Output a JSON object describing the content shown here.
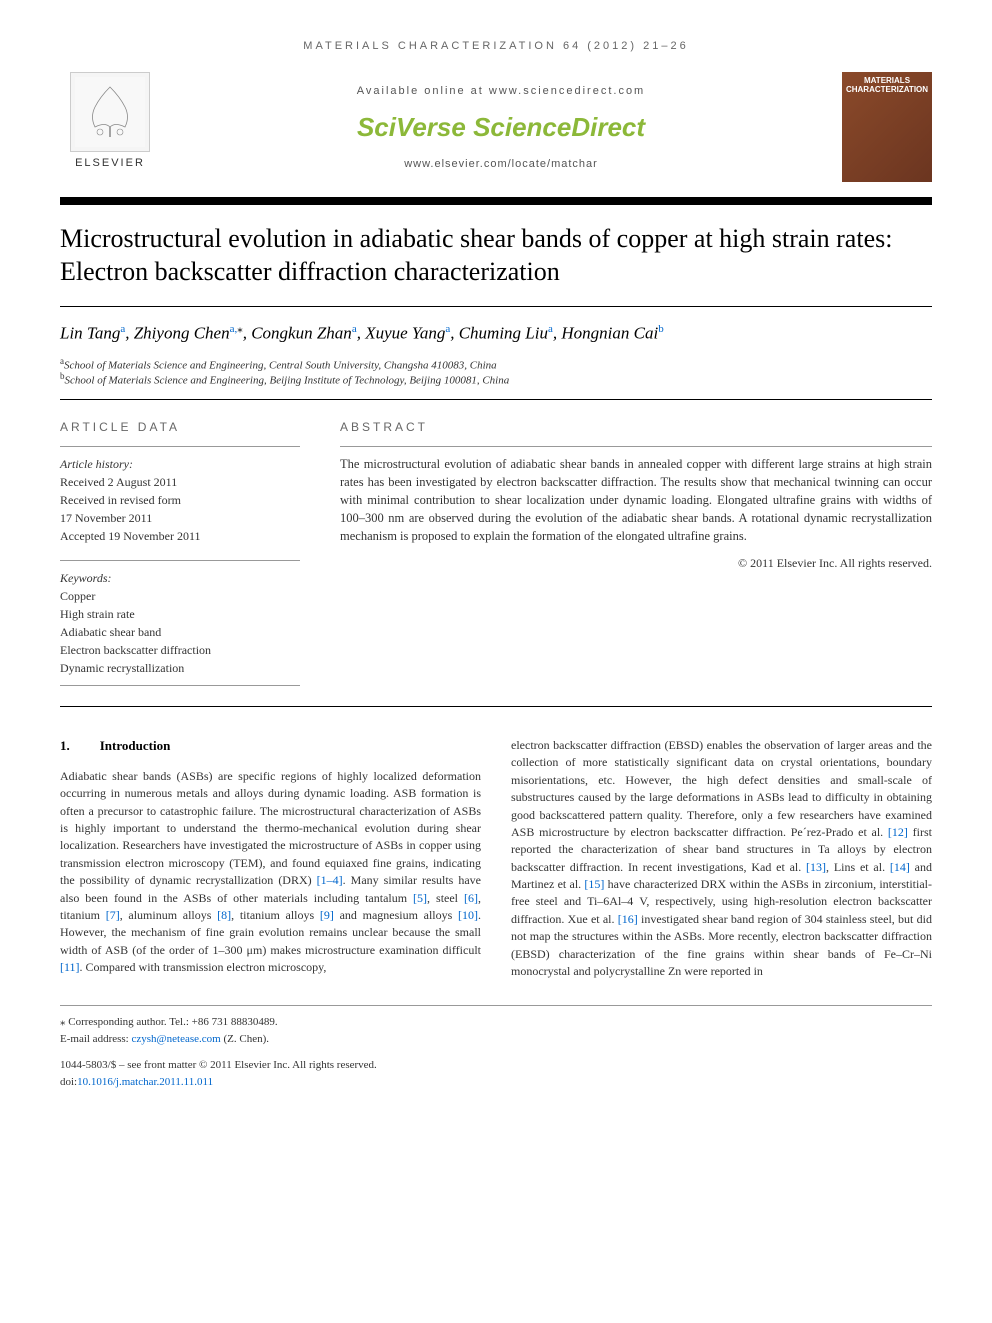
{
  "journalHeader": "MATERIALS CHARACTERIZATION 64 (2012) 21–26",
  "availableText": "Available online at www.sciencedirect.com",
  "sciverseBrand": "SciVerse ",
  "sciDirectBrand": "ScienceDirect",
  "locateText": "www.elsevier.com/locate/matchar",
  "elsevierLabel": "ELSEVIER",
  "coverTitle": "MATERIALS CHARACTERIZATION",
  "articleTitle": "Microstructural evolution in adiabatic shear bands of copper at high strain rates: Electron backscatter diffraction characterization",
  "authorsHtmlParts": [
    {
      "name": "Lin Tang",
      "sup": "a"
    },
    {
      "name": "Zhiyong Chen",
      "sup": "a,",
      "star": true
    },
    {
      "name": "Congkun Zhan",
      "sup": "a"
    },
    {
      "name": "Xuyue Yang",
      "sup": "a"
    },
    {
      "name": "Chuming Liu",
      "sup": "a"
    },
    {
      "name": "Hongnian Cai",
      "sup": "b"
    }
  ],
  "affiliations": [
    {
      "sup": "a",
      "text": "School of Materials Science and Engineering, Central South University, Changsha 410083, China"
    },
    {
      "sup": "b",
      "text": "School of Materials Science and Engineering, Beijing Institute of Technology, Beijing 100081, China"
    }
  ],
  "articleDataLabel": "ARTICLE DATA",
  "historyLabel": "Article history:",
  "history": [
    "Received 2 August 2011",
    "Received in revised form",
    "17 November 2011",
    "Accepted 19 November 2011"
  ],
  "keywordsLabel": "Keywords:",
  "keywords": [
    "Copper",
    "High strain rate",
    "Adiabatic shear band",
    "Electron backscatter diffraction",
    "Dynamic recrystallization"
  ],
  "abstractLabel": "ABSTRACT",
  "abstractText": "The microstructural evolution of adiabatic shear bands in annealed copper with different large strains at high strain rates has been investigated by electron backscatter diffraction. The results show that mechanical twinning can occur with minimal contribution to shear localization under dynamic loading. Elongated ultrafine grains with widths of 100–300 nm are observed during the evolution of the adiabatic shear bands. A rotational dynamic recrystallization mechanism is proposed to explain the formation of the elongated ultrafine grains.",
  "copyrightAbstract": "© 2011 Elsevier Inc. All rights reserved.",
  "section1Num": "1.",
  "section1Title": "Introduction",
  "col1Text": "Adiabatic shear bands (ASBs) are specific regions of highly localized deformation occurring in numerous metals and alloys during dynamic loading. ASB formation is often a precursor to catastrophic failure. The microstructural characterization of ASBs is highly important to understand the thermo-mechanical evolution during shear localization. Researchers have investigated the microstructure of ASBs in copper using transmission electron microscopy (TEM), and found equiaxed fine grains, indicating the possibility of dynamic recrystallization (DRX) ",
  "ref1_4": "[1–4]",
  "col1Text2": ". Many similar results have also been found in the ASBs of other materials including tantalum ",
  "ref5": "[5]",
  "col1Text3": ", steel ",
  "ref6": "[6]",
  "col1Text4": ", titanium ",
  "ref7": "[7]",
  "col1Text5": ", aluminum alloys ",
  "ref8": "[8]",
  "col1Text6": ", titanium alloys ",
  "ref9": "[9]",
  "col1Text7": " and magnesium alloys ",
  "ref10": "[10]",
  "col1Text8": ". However, the mechanism of fine grain evolution remains unclear because the small width of ASB (of the order of 1–300 μm) makes microstructure examination difficult ",
  "ref11": "[11]",
  "col1Text9": ". Compared with transmission electron microscopy,",
  "col2Text1": "electron backscatter diffraction (EBSD) enables the observation of larger areas and the collection of more statistically significant data on crystal orientations, boundary misorientations, etc. However, the high defect densities and small-scale of substructures caused by the large deformations in ASBs lead to difficulty in obtaining good backscattered pattern quality. Therefore, only a few researchers have examined ASB microstructure by electron backscatter diffraction. Pe´rez-Prado et al. ",
  "ref12": "[12]",
  "col2Text2": " first reported the characterization of shear band structures in Ta alloys by electron backscatter diffraction. In recent investigations, Kad et al. ",
  "ref13": "[13]",
  "col2Text3": ", Lins et al. ",
  "ref14": "[14]",
  "col2Text4": " and Martinez et al. ",
  "ref15": "[15]",
  "col2Text5": " have characterized DRX within the ASBs in zirconium, interstitial-free steel and Ti–6Al–4 V, respectively, using high-resolution electron backscatter diffraction. Xue et al. ",
  "ref16": "[16]",
  "col2Text6": " investigated shear band region of 304 stainless steel, but did not map the structures within the ASBs. More recently, electron backscatter diffraction (EBSD) characterization of the fine grains within shear bands of Fe–Cr–Ni monocrystal and polycrystalline Zn were reported in",
  "corrAuthorLabel": "⁎ Corresponding author.",
  "corrAuthorTel": " Tel.: +86 731 88830489.",
  "emailLabel": "E-mail address: ",
  "emailAddress": "czysh@netease.com",
  "emailName": " (Z. Chen).",
  "issnLine": "1044-5803/$ – see front matter © 2011 Elsevier Inc. All rights reserved.",
  "doiLabel": "doi:",
  "doiValue": "10.1016/j.matchar.2011.11.011"
}
